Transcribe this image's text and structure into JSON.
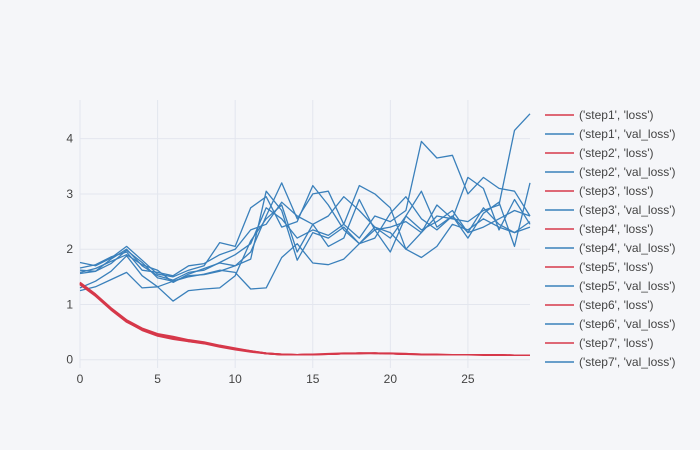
{
  "chart_data": {
    "type": "line",
    "title": "",
    "xlabel": "",
    "ylabel": "",
    "xlim": [
      0,
      29
    ],
    "ylim": [
      -0.15,
      4.7
    ],
    "xticks": [
      0,
      5,
      10,
      15,
      20,
      25
    ],
    "yticks": [
      0,
      1,
      2,
      3,
      4
    ],
    "grid": true,
    "legend_position": "right",
    "colors": {
      "loss": "#d6384a",
      "val_loss": "#3a80bb",
      "grid": "#e3e6ee",
      "background": "#f5f6f9"
    },
    "series": [
      {
        "name": "('step1', 'loss')",
        "kind": "loss",
        "values": [
          1.39,
          1.18,
          0.92,
          0.7,
          0.55,
          0.45,
          0.4,
          0.33,
          0.3,
          0.24,
          0.19,
          0.15,
          0.11,
          0.09,
          0.09,
          0.09,
          0.1,
          0.11,
          0.11,
          0.12,
          0.11,
          0.1,
          0.1,
          0.09,
          0.09,
          0.09,
          0.09,
          0.09,
          0.08,
          0.08
        ]
      },
      {
        "name": "('step1', 'val_loss')",
        "kind": "val_loss",
        "values": [
          1.62,
          1.6,
          1.74,
          1.98,
          1.76,
          1.48,
          1.42,
          1.52,
          1.54,
          1.6,
          1.7,
          1.82,
          3.05,
          2.7,
          1.8,
          2.3,
          2.2,
          2.4,
          2.1,
          2.35,
          2.4,
          2.5,
          2.3,
          2.6,
          2.55,
          2.5,
          2.7,
          2.8,
          4.15,
          4.45
        ]
      },
      {
        "name": "('step2', 'loss')",
        "kind": "loss",
        "values": [
          1.38,
          1.16,
          0.91,
          0.69,
          0.53,
          0.43,
          0.37,
          0.33,
          0.29,
          0.23,
          0.18,
          0.14,
          0.11,
          0.09,
          0.09,
          0.1,
          0.1,
          0.11,
          0.12,
          0.11,
          0.11,
          0.1,
          0.09,
          0.09,
          0.09,
          0.09,
          0.08,
          0.08,
          0.08,
          0.08
        ]
      },
      {
        "name": "('step2', 'val_loss')",
        "kind": "val_loss",
        "values": [
          1.56,
          1.6,
          1.82,
          2.0,
          1.7,
          1.52,
          1.44,
          1.58,
          1.62,
          1.76,
          1.9,
          2.1,
          2.75,
          2.55,
          2.2,
          2.35,
          2.25,
          2.45,
          2.2,
          2.6,
          2.5,
          2.7,
          3.95,
          3.65,
          3.7,
          3.0,
          3.3,
          3.1,
          3.05,
          2.6
        ]
      },
      {
        "name": "('step3', 'loss')",
        "kind": "loss",
        "values": [
          1.37,
          1.17,
          0.93,
          0.71,
          0.56,
          0.46,
          0.41,
          0.35,
          0.31,
          0.25,
          0.2,
          0.16,
          0.12,
          0.1,
          0.09,
          0.1,
          0.11,
          0.12,
          0.12,
          0.12,
          0.11,
          0.1,
          0.1,
          0.09,
          0.09,
          0.09,
          0.09,
          0.08,
          0.08,
          0.08
        ]
      },
      {
        "name": "('step3', 'val_loss')",
        "kind": "val_loss",
        "values": [
          1.76,
          1.7,
          1.84,
          2.05,
          1.8,
          1.55,
          1.5,
          1.62,
          1.7,
          2.12,
          2.05,
          2.75,
          2.95,
          2.4,
          2.5,
          3.15,
          2.8,
          2.35,
          2.1,
          2.2,
          2.65,
          2.95,
          2.55,
          2.35,
          2.6,
          2.3,
          2.75,
          2.45,
          2.3,
          2.4
        ]
      },
      {
        "name": "('step4', 'loss')",
        "kind": "loss",
        "values": [
          1.36,
          1.15,
          0.9,
          0.68,
          0.54,
          0.44,
          0.39,
          0.34,
          0.3,
          0.24,
          0.19,
          0.15,
          0.11,
          0.1,
          0.09,
          0.09,
          0.1,
          0.11,
          0.12,
          0.12,
          0.11,
          0.1,
          0.1,
          0.1,
          0.09,
          0.09,
          0.09,
          0.09,
          0.08,
          0.08
        ]
      },
      {
        "name": "('step4', 'val_loss')",
        "kind": "val_loss",
        "values": [
          1.3,
          1.42,
          1.6,
          1.88,
          1.52,
          1.32,
          1.06,
          1.25,
          1.28,
          1.3,
          1.52,
          2.15,
          2.55,
          2.8,
          1.95,
          2.45,
          2.05,
          2.2,
          2.9,
          2.35,
          1.95,
          2.6,
          3.05,
          2.4,
          2.6,
          2.2,
          2.65,
          2.85,
          2.05,
          3.2
        ]
      },
      {
        "name": "('step5', 'loss')",
        "kind": "loss",
        "values": [
          1.4,
          1.19,
          0.94,
          0.72,
          0.57,
          0.47,
          0.42,
          0.36,
          0.32,
          0.26,
          0.21,
          0.16,
          0.12,
          0.1,
          0.09,
          0.1,
          0.1,
          0.11,
          0.12,
          0.12,
          0.12,
          0.11,
          0.1,
          0.09,
          0.09,
          0.09,
          0.09,
          0.08,
          0.08,
          0.08
        ]
      },
      {
        "name": "('step5', 'val_loss')",
        "kind": "val_loss",
        "values": [
          1.66,
          1.72,
          1.86,
          1.95,
          1.62,
          1.58,
          1.52,
          1.7,
          1.74,
          1.9,
          2.0,
          2.35,
          2.45,
          2.85,
          2.6,
          2.45,
          2.6,
          2.95,
          2.7,
          2.4,
          2.2,
          2.6,
          2.35,
          2.5,
          2.7,
          2.3,
          2.4,
          2.55,
          2.7,
          2.6
        ]
      },
      {
        "name": "('step6', 'loss')",
        "kind": "loss",
        "values": [
          1.37,
          1.17,
          0.92,
          0.7,
          0.55,
          0.45,
          0.4,
          0.34,
          0.31,
          0.24,
          0.2,
          0.15,
          0.11,
          0.09,
          0.09,
          0.1,
          0.1,
          0.11,
          0.11,
          0.12,
          0.11,
          0.11,
          0.1,
          0.09,
          0.09,
          0.09,
          0.09,
          0.08,
          0.08,
          0.08
        ]
      },
      {
        "name": "('step6', 'val_loss')",
        "kind": "val_loss",
        "values": [
          1.25,
          1.32,
          1.45,
          1.58,
          1.3,
          1.32,
          1.42,
          1.5,
          1.55,
          1.62,
          1.58,
          1.28,
          1.3,
          1.85,
          2.1,
          1.75,
          1.72,
          1.82,
          2.1,
          2.4,
          2.3,
          2.0,
          1.85,
          2.05,
          2.45,
          2.35,
          2.55,
          2.4,
          2.3,
          2.5
        ]
      },
      {
        "name": "('step7', 'loss')",
        "kind": "loss",
        "values": [
          1.39,
          1.17,
          0.92,
          0.7,
          0.55,
          0.45,
          0.4,
          0.34,
          0.3,
          0.25,
          0.19,
          0.15,
          0.12,
          0.1,
          0.09,
          0.1,
          0.1,
          0.11,
          0.12,
          0.12,
          0.11,
          0.1,
          0.1,
          0.09,
          0.09,
          0.09,
          0.09,
          0.09,
          0.08,
          0.08
        ]
      },
      {
        "name": "('step7', 'val_loss')",
        "kind": "val_loss",
        "values": [
          1.58,
          1.65,
          1.78,
          1.9,
          1.72,
          1.62,
          1.4,
          1.55,
          1.65,
          1.75,
          1.7,
          1.95,
          2.6,
          3.2,
          2.55,
          3.0,
          3.05,
          2.45,
          3.15,
          3.0,
          2.75,
          2.0,
          2.3,
          2.8,
          2.55,
          3.3,
          3.1,
          2.35,
          2.9,
          2.45
        ]
      }
    ]
  }
}
